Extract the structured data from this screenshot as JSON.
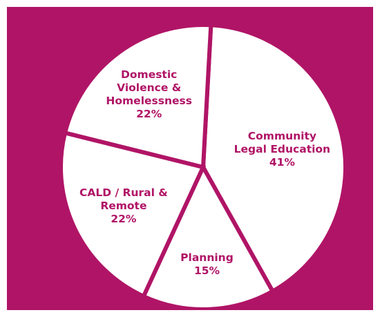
{
  "chart_data": {
    "type": "pie",
    "slices": [
      {
        "label_lines": [
          "Community",
          "Legal Education"
        ],
        "value": 41,
        "percent_label": "41%"
      },
      {
        "label_lines": [
          "Planning"
        ],
        "value": 15,
        "percent_label": "15%"
      },
      {
        "label_lines": [
          "CALD / Rural &",
          "Remote"
        ],
        "value": 22,
        "percent_label": "22%"
      },
      {
        "label_lines": [
          "Domestic",
          "Violence &",
          "Homelessness"
        ],
        "value": 22,
        "percent_label": "22%"
      }
    ],
    "title": "",
    "legend": "none",
    "colors": {
      "background": "#b01466",
      "slice_fill": "#ffffff",
      "label_text": "#b01466"
    }
  }
}
